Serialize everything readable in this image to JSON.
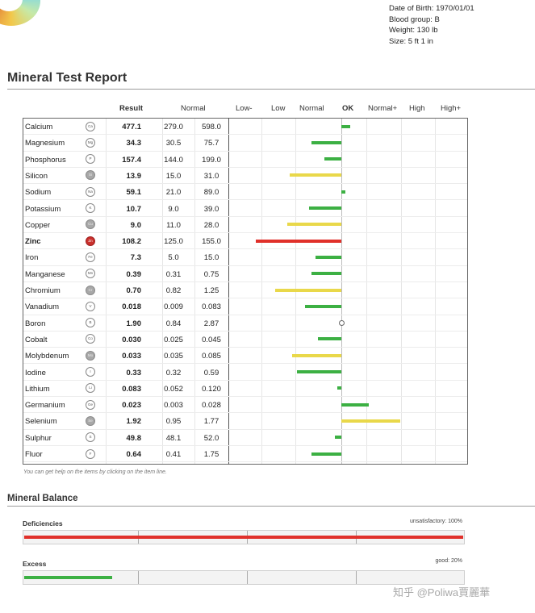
{
  "patient": {
    "dob": "Date of Birth: 1970/01/01",
    "blood_group": "Blood group: B",
    "weight": "Weight: 130 lb",
    "size": "Size: 5 ft 1 in"
  },
  "report": {
    "title": "Mineral Test Report",
    "headers": {
      "result": "Result",
      "normal": "Normal",
      "low_minus": "Low-",
      "low": "Low",
      "normal_scale": "Normal",
      "ok": "OK",
      "normal_plus": "Normal+",
      "high": "High",
      "high_plus": "High+"
    },
    "colors": {
      "green": "#3cb043",
      "yellow": "#e9d84a",
      "red": "#e0302a"
    },
    "rows": [
      {
        "name": "Calcium",
        "sym": "Ca",
        "result": "477.1",
        "low": "279.0",
        "high": "598.0",
        "deviation": 0.1,
        "level": "green"
      },
      {
        "name": "Magnesium",
        "sym": "Mg",
        "result": "34.3",
        "low": "30.5",
        "high": "75.7",
        "deviation": -0.35,
        "level": "green"
      },
      {
        "name": "Phosphorus",
        "sym": "P",
        "result": "157.4",
        "low": "144.0",
        "high": "199.0",
        "deviation": -0.2,
        "level": "green"
      },
      {
        "name": "Silicon",
        "sym": "Si",
        "result": "13.9",
        "low": "15.0",
        "high": "31.0",
        "deviation": -0.6,
        "level": "yellow"
      },
      {
        "name": "Sodium",
        "sym": "Na",
        "result": "59.1",
        "low": "21.0",
        "high": "89.0",
        "deviation": 0.05,
        "level": "green"
      },
      {
        "name": "Potassium",
        "sym": "K",
        "result": "10.7",
        "low": "9.0",
        "high": "39.0",
        "deviation": -0.38,
        "level": "green"
      },
      {
        "name": "Copper",
        "sym": "Cu",
        "result": "9.0",
        "low": "11.0",
        "high": "28.0",
        "deviation": -0.63,
        "level": "yellow"
      },
      {
        "name": "Zinc",
        "sym": "Zn",
        "result": "108.2",
        "low": "125.0",
        "high": "155.0",
        "deviation": -1.0,
        "level": "red"
      },
      {
        "name": "Iron",
        "sym": "Fe",
        "result": "7.3",
        "low": "5.0",
        "high": "15.0",
        "deviation": -0.3,
        "level": "green"
      },
      {
        "name": "Manganese",
        "sym": "Mn",
        "result": "0.39",
        "low": "0.31",
        "high": "0.75",
        "deviation": -0.35,
        "level": "green"
      },
      {
        "name": "Chromium",
        "sym": "Cr",
        "result": "0.70",
        "low": "0.82",
        "high": "1.25",
        "deviation": -0.77,
        "level": "yellow"
      },
      {
        "name": "Vanadium",
        "sym": "V",
        "result": "0.018",
        "low": "0.009",
        "high": "0.083",
        "deviation": -0.42,
        "level": "green"
      },
      {
        "name": "Boron",
        "sym": "B",
        "result": "1.90",
        "low": "0.84",
        "high": "2.87",
        "deviation": 0,
        "level": "ok"
      },
      {
        "name": "Cobalt",
        "sym": "Co",
        "result": "0.030",
        "low": "0.025",
        "high": "0.045",
        "deviation": -0.27,
        "level": "green"
      },
      {
        "name": "Molybdenum",
        "sym": "Mo",
        "result": "0.033",
        "low": "0.035",
        "high": "0.085",
        "deviation": -0.58,
        "level": "yellow"
      },
      {
        "name": "Iodine",
        "sym": "I",
        "result": "0.33",
        "low": "0.32",
        "high": "0.59",
        "deviation": -0.52,
        "level": "green"
      },
      {
        "name": "Lithium",
        "sym": "Li",
        "result": "0.083",
        "low": "0.052",
        "high": "0.120",
        "deviation": -0.05,
        "level": "green"
      },
      {
        "name": "Germanium",
        "sym": "Ge",
        "result": "0.023",
        "low": "0.003",
        "high": "0.028",
        "deviation": 0.32,
        "level": "green"
      },
      {
        "name": "Selenium",
        "sym": "Se",
        "result": "1.92",
        "low": "0.95",
        "high": "1.77",
        "deviation": 0.69,
        "level": "yellow"
      },
      {
        "name": "Sulphur",
        "sym": "S",
        "result": "49.8",
        "low": "48.1",
        "high": "52.0",
        "deviation": -0.08,
        "level": "green"
      },
      {
        "name": "Fluor",
        "sym": "F",
        "result": "0.64",
        "low": "0.41",
        "high": "1.75",
        "deviation": -0.35,
        "level": "green"
      }
    ],
    "help": "You can get help on the items by clicking on the item line."
  },
  "balance": {
    "title": "Mineral Balance",
    "deficiencies": {
      "label": "Deficiencies",
      "status": "unsatisfactory: 100%",
      "level": 1.0,
      "color": "#e0302a"
    },
    "excess": {
      "label": "Excess",
      "status": "good: 20%",
      "level": 0.2,
      "color": "#3cb043"
    }
  },
  "watermark": "知乎 @Poliwa賈麗華"
}
